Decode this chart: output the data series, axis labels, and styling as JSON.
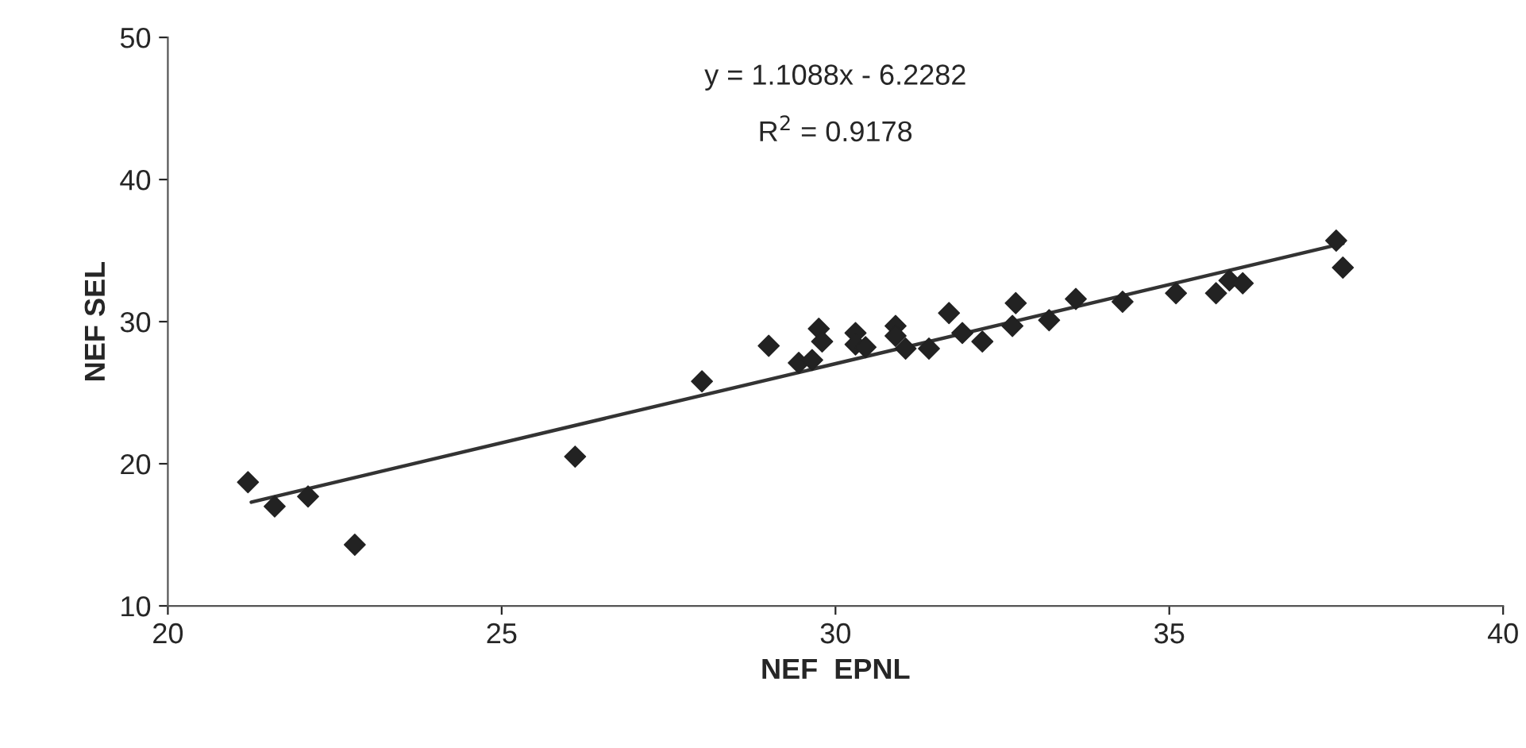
{
  "chart_data": {
    "type": "scatter",
    "xlabel": "NEF  EPNL",
    "ylabel": "NEF SEL",
    "xlim": [
      20,
      40
    ],
    "ylim": [
      10,
      50
    ],
    "xticks": [
      20,
      25,
      30,
      35,
      40
    ],
    "yticks": [
      10,
      20,
      30,
      40,
      50
    ],
    "grid": false,
    "marker": "diamond",
    "annotations": [
      "y = 1.1088x - 6.2282",
      "R$^{2}$ = 0.9178"
    ],
    "series": [
      {
        "color": "#222222",
        "x": [
          21.2,
          21.6,
          22.1,
          22.8,
          26.1,
          28.0,
          29.0,
          29.45,
          29.65,
          29.75,
          29.8,
          30.3,
          30.3,
          30.45,
          30.9,
          30.9,
          31.05,
          31.4,
          31.7,
          31.9,
          32.2,
          32.7,
          32.65,
          33.2,
          33.6,
          34.3,
          35.1,
          35.7,
          35.9,
          36.1,
          37.5,
          37.6
        ],
        "values": [
          18.7,
          17.0,
          17.7,
          14.3,
          20.5,
          25.8,
          28.3,
          27.1,
          27.3,
          29.5,
          28.6,
          29.2,
          28.4,
          28.2,
          29.7,
          29.0,
          28.1,
          28.1,
          30.6,
          29.2,
          28.6,
          31.3,
          29.7,
          30.1,
          31.6,
          31.4,
          32.0,
          32.0,
          32.9,
          32.7,
          35.7,
          33.8
        ]
      },
      {
        "type": "line",
        "color": "#333333",
        "line_style": "solid",
        "marker": "none",
        "x": [
          21.25,
          37.6
        ],
        "values": [
          17.3,
          35.5
        ]
      }
    ]
  }
}
